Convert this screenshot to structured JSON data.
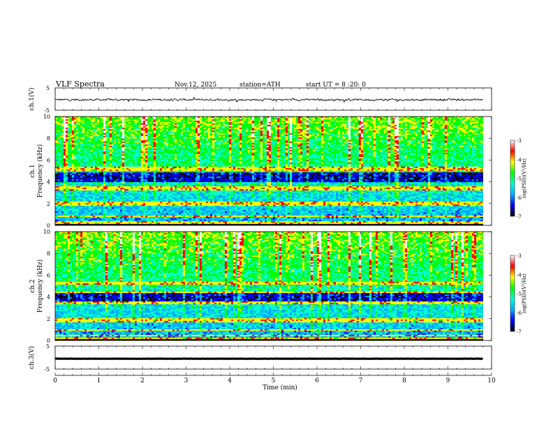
{
  "header": {
    "title": "VLF  Spectra",
    "date": "Nov.12, 2025",
    "station": "station=ATH",
    "start": "start  UT  =   8 :20: 0"
  },
  "colors": {
    "cmap": [
      "#000000",
      "#0000ff",
      "#00aaff",
      "#00ffcc",
      "#00ff00",
      "#ffff00",
      "#ff0000",
      "#ffffff"
    ]
  },
  "chart_data": [
    {
      "type": "line",
      "name": "ch1-waveform",
      "ylabel": "ch.1(V)",
      "ylim": [
        -5,
        5
      ],
      "yticks": [
        "5",
        "-5"
      ],
      "xlim": [
        0,
        10
      ],
      "baseline": -0.3,
      "noise_amplitude": 1.4
    },
    {
      "type": "heatmap",
      "name": "ch1-spectrogram",
      "ylabel": "ch.1\nFrequency (kHz)",
      "ylim": [
        0,
        10
      ],
      "yticks": [
        "0",
        "2",
        "4",
        "6",
        "8",
        "10"
      ],
      "colorbar": {
        "label": "log(PSD)(V²/Hz)",
        "ticks": [
          "-3",
          "-4",
          "-5",
          "-6",
          "-7"
        ],
        "range": [
          -7,
          -3
        ]
      },
      "bands_khz": [
        0.2,
        0.4,
        0.9,
        1.9,
        2.0,
        2.2,
        3.4,
        3.6,
        5.2,
        5.4
      ],
      "quiet_khz": [
        4.0,
        5.0
      ]
    },
    {
      "type": "heatmap",
      "name": "ch2-spectrogram",
      "ylabel": "ch.2\nFrequency (kHz)",
      "ylim": [
        0,
        10
      ],
      "yticks": [
        "0",
        "2",
        "4",
        "6",
        "8",
        "10"
      ],
      "colorbar": {
        "label": "log(PSD)(V²/Hz)",
        "ticks": [
          "-3",
          "-4",
          "-5",
          "-6",
          "-7"
        ],
        "range": [
          -7,
          -3
        ]
      },
      "bands_khz": [
        0.2,
        0.5,
        1.0,
        1.8,
        2.0,
        3.5,
        4.5,
        5.3
      ],
      "quiet_khz": [
        3.6,
        4.4
      ]
    },
    {
      "type": "line",
      "name": "ch3-waveform",
      "ylabel": "ch.3(V)",
      "ylim": [
        -5,
        5
      ],
      "yticks": [
        "5",
        "-5"
      ],
      "xlim": [
        0,
        10
      ],
      "baseline": -0.5,
      "noise_amplitude": 0.15
    }
  ],
  "xaxis": {
    "label": "Time  (min)",
    "ticks": [
      "0",
      "1",
      "2",
      "3",
      "4",
      "5",
      "6",
      "7",
      "8",
      "9",
      "10"
    ],
    "xlim": [
      0,
      10
    ],
    "data_end": 9.8
  }
}
